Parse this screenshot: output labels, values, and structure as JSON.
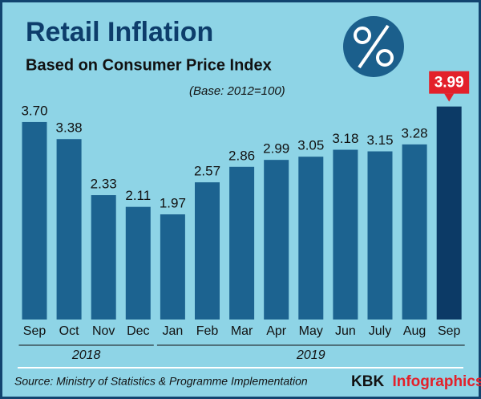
{
  "chart_data": {
    "type": "bar",
    "title": "Retail Inflation",
    "subtitle": "Based on Consumer Price Index",
    "note": "(Base: 2012=100)",
    "categories": [
      "Sep",
      "Oct",
      "Nov",
      "Dec",
      "Jan",
      "Feb",
      "Mar",
      "Apr",
      "May",
      "Jun",
      "July",
      "Aug",
      "Sep"
    ],
    "values": [
      3.7,
      3.38,
      2.33,
      2.11,
      1.97,
      2.57,
      2.86,
      2.99,
      3.05,
      3.18,
      3.15,
      3.28,
      3.99
    ],
    "value_labels": [
      "3.70",
      "3.38",
      "2.33",
      "2.11",
      "1.97",
      "2.57",
      "2.86",
      "2.99",
      "3.05",
      "3.18",
      "3.15",
      "3.28",
      "3.99"
    ],
    "color": "#1c6390",
    "highlight_color": "#0c3a66",
    "highlight_label_color": "#e3202a",
    "group_labels": [
      "2018",
      "2019"
    ],
    "source": "Source: Ministry of Statistics & Programme Implementation",
    "brand": "KBK",
    "brand_suffix": "Infographics"
  }
}
